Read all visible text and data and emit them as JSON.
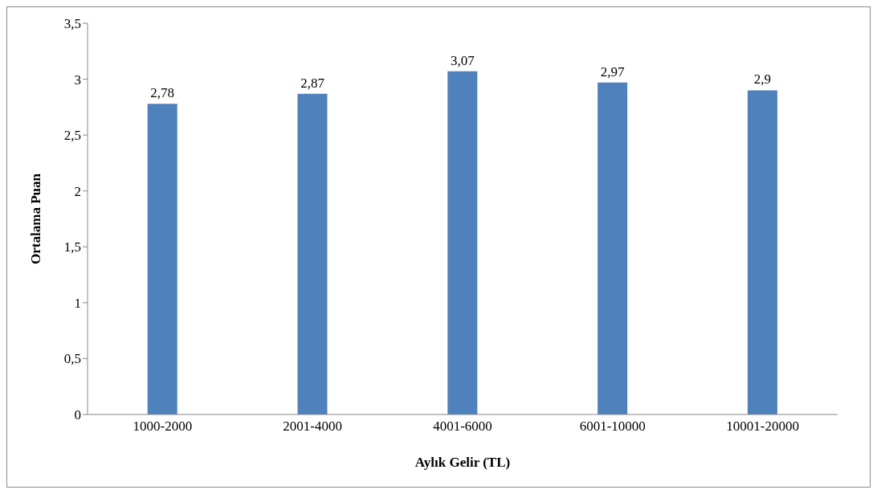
{
  "chart_data": {
    "type": "bar",
    "xlabel": "Aylık Gelir (TL)",
    "ylabel": "Ortalama Puan",
    "categories": [
      "1000-2000",
      "2001-4000",
      "4001-6000",
      "6001-10000",
      "10001-20000"
    ],
    "values": [
      2.78,
      2.87,
      3.07,
      2.97,
      2.9
    ],
    "value_labels": [
      "2,78",
      "2,87",
      "3,07",
      "2,97",
      "2,9"
    ],
    "color": "#4f81bd",
    "ylim": [
      0,
      3.5
    ],
    "yticks": [
      {
        "value": 0,
        "label": "0"
      },
      {
        "value": 0.5,
        "label": "0,5"
      },
      {
        "value": 1,
        "label": "1"
      },
      {
        "value": 1.5,
        "label": "1,5"
      },
      {
        "value": 2,
        "label": "2"
      },
      {
        "value": 2.5,
        "label": "2,5"
      },
      {
        "value": 3,
        "label": "3"
      },
      {
        "value": 3.5,
        "label": "3,5"
      }
    ],
    "grid": false,
    "legend": false
  }
}
